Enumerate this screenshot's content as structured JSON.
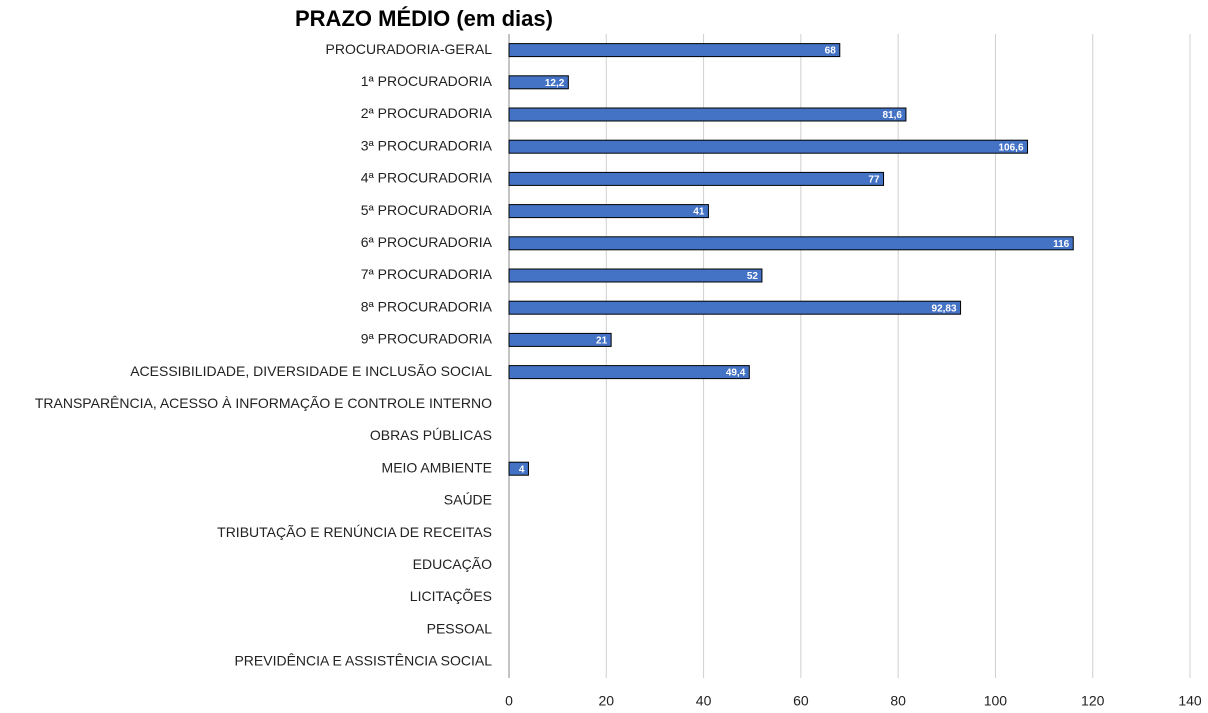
{
  "chart_data": {
    "type": "bar",
    "orientation": "horizontal",
    "title": "PRAZO MÉDIO (em dias)",
    "categories": [
      "PROCURADORIA-GERAL",
      "1ª PROCURADORIA",
      "2ª PROCURADORIA",
      "3ª PROCURADORIA",
      "4ª PROCURADORIA",
      "5ª PROCURADORIA",
      "6ª PROCURADORIA",
      "7ª PROCURADORIA",
      "8ª PROCURADORIA",
      "9ª PROCURADORIA",
      "ACESSIBILIDADE, DIVERSIDADE E INCLUSÃO SOCIAL",
      "TRANSPARÊNCIA, ACESSO À INFORMAÇÃO E CONTROLE INTERNO",
      "OBRAS PÚBLICAS",
      "MEIO AMBIENTE",
      "SAÚDE",
      "TRIBUTAÇÃO E RENÚNCIA DE RECEITAS",
      "EDUCAÇÃO",
      "LICITAÇÕES",
      "PESSOAL",
      "PREVIDÊNCIA E ASSISTÊNCIA SOCIAL"
    ],
    "values": [
      68,
      12.2,
      81.6,
      106.6,
      77,
      41,
      116,
      52,
      92.83,
      21,
      49.4,
      null,
      null,
      4,
      null,
      null,
      null,
      null,
      null,
      null
    ],
    "value_labels": [
      "68",
      "12,2",
      "81,6",
      "106,6",
      "77",
      "41",
      "116",
      "52",
      "92,83",
      "21",
      "49,4",
      null,
      null,
      "4",
      null,
      null,
      null,
      null,
      null,
      null
    ],
    "color": "#4472c4",
    "xlim": [
      0,
      140
    ],
    "xticks": [
      0,
      20,
      40,
      60,
      80,
      100,
      120,
      140
    ],
    "grid": true
  }
}
